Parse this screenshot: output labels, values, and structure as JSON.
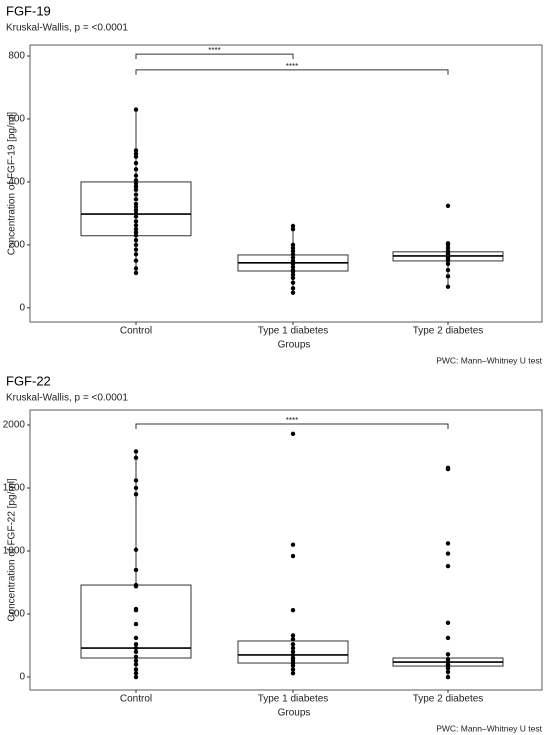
{
  "chart_data": [
    {
      "type": "box",
      "title": "FGF-19",
      "subtitle": "Kruskal-Wallis, p = <0.0001",
      "xlabel": "Groups",
      "ylabel": "Concentration of FGF-19 [pg/ml]",
      "caption": "PWC: Mann–Whitney U test",
      "categories": [
        "Control",
        "Type 1 diabetes",
        "Type 2 diabetes"
      ],
      "boxes": [
        {
          "whisker_low": 111,
          "q1": 229,
          "median": 298,
          "q3": 400,
          "whisker_high": 630,
          "points": [
            111,
            125,
            150,
            170,
            185,
            200,
            215,
            230,
            240,
            250,
            262,
            275,
            290,
            300,
            310,
            320,
            330,
            345,
            360,
            375,
            385,
            395,
            405,
            420,
            440,
            460,
            480,
            490,
            500,
            630
          ]
        },
        {
          "whisker_low": 48,
          "q1": 117,
          "median": 143,
          "q3": 168,
          "whisker_high": 260,
          "points": [
            48,
            62,
            80,
            95,
            105,
            115,
            120,
            130,
            140,
            145,
            150,
            160,
            170,
            180,
            190,
            200,
            250,
            260
          ]
        },
        {
          "whisker_low": 67,
          "q1": 149,
          "median": 165,
          "q3": 178,
          "whisker_high": 205,
          "points": [
            67,
            100,
            120,
            140,
            150,
            155,
            160,
            165,
            170,
            175,
            180,
            190,
            200,
            205,
            324
          ]
        }
      ],
      "brackets": [
        {
          "label": "****",
          "from": 0,
          "to": 1,
          "y": 806
        },
        {
          "label": "****",
          "from": 0,
          "to": 2,
          "y": 756
        }
      ],
      "ylim": [
        -45,
        835
      ],
      "yticks": [
        0,
        200,
        400,
        600,
        800
      ]
    },
    {
      "type": "box",
      "title": "FGF-22",
      "subtitle": "Kruskal-Wallis, p = <0.0001",
      "xlabel": "Groups",
      "ylabel": "Concentration of FGF-22 [pg/ml]",
      "caption": "PWC: Mann–Whitney U test",
      "categories": [
        "Control",
        "Type 1 diabetes",
        "Type 2 diabetes"
      ],
      "boxes": [
        {
          "whisker_low": 0,
          "q1": 151,
          "median": 230,
          "q3": 730,
          "whisker_high": 1790,
          "points": [
            0,
            30,
            60,
            100,
            130,
            160,
            200,
            230,
            260,
            310,
            420,
            530,
            540,
            720,
            730,
            850,
            1010,
            1450,
            1500,
            1560,
            1740,
            1790
          ]
        },
        {
          "whisker_low": 30,
          "q1": 111,
          "median": 175,
          "q3": 286,
          "whisker_high": 330,
          "points": [
            30,
            60,
            90,
            110,
            130,
            150,
            175,
            200,
            230,
            260,
            300,
            330,
            530,
            960,
            1050,
            1930
          ]
        },
        {
          "whisker_low": 0,
          "q1": 87,
          "median": 119,
          "q3": 151,
          "whisker_high": 180,
          "points": [
            0,
            40,
            70,
            90,
            100,
            119,
            140,
            180,
            310,
            430,
            880,
            980,
            1060,
            1650,
            1660
          ]
        }
      ],
      "brackets": [
        {
          "label": "****",
          "from": 0,
          "to": 2,
          "y": 2008
        }
      ],
      "ylim": [
        -103,
        2119
      ],
      "yticks": [
        0,
        500,
        1000,
        1500,
        2000
      ]
    }
  ]
}
